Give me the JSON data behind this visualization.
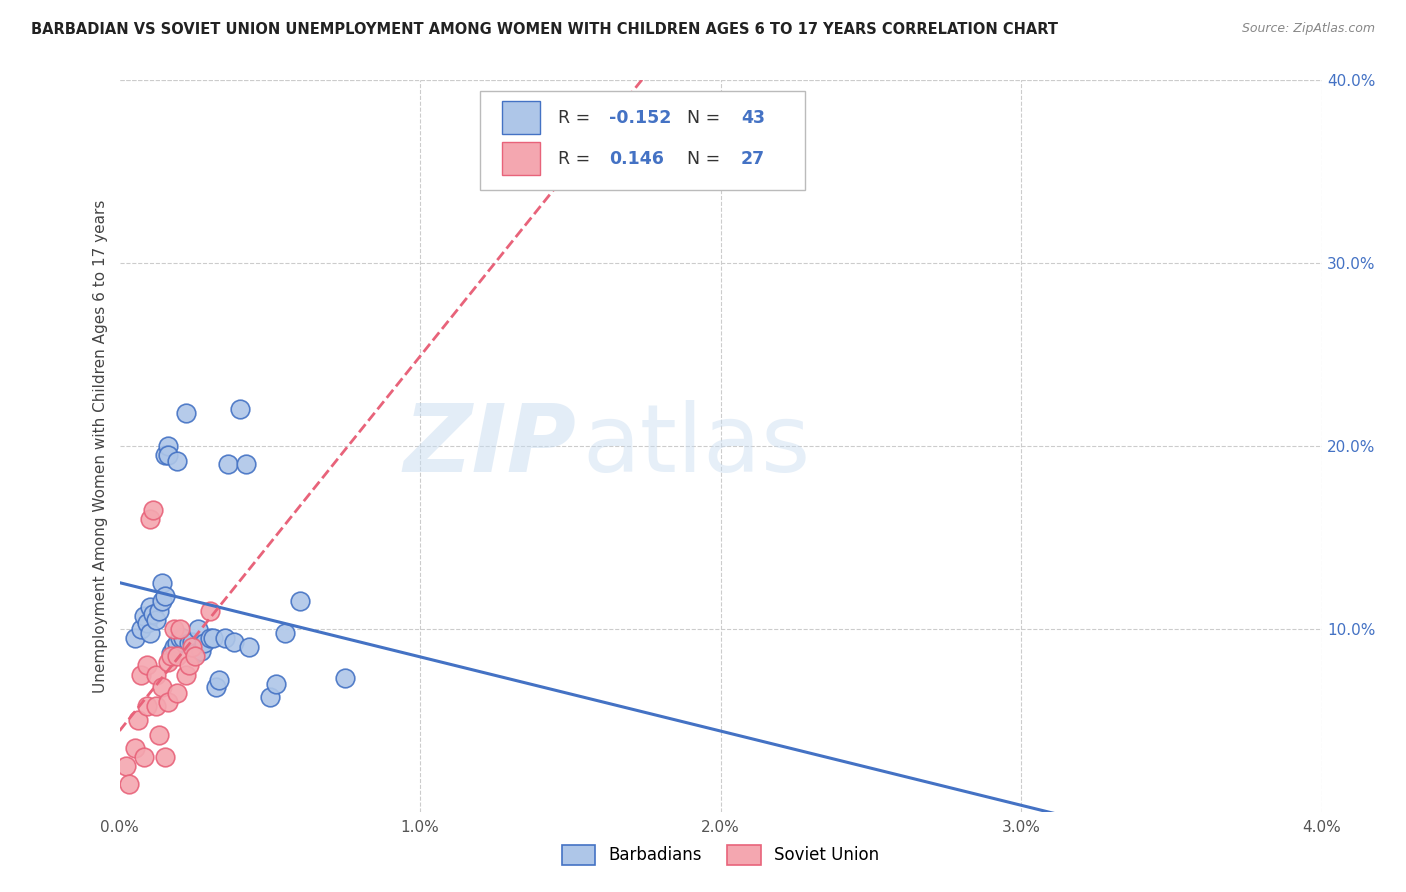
{
  "title": "BARBADIAN VS SOVIET UNION UNEMPLOYMENT AMONG WOMEN WITH CHILDREN AGES 6 TO 17 YEARS CORRELATION CHART",
  "source": "Source: ZipAtlas.com",
  "ylabel": "Unemployment Among Women with Children Ages 6 to 17 years",
  "barbadians_R": -0.152,
  "barbadians_N": 43,
  "soviet_R": 0.146,
  "soviet_N": 27,
  "x_min": 0.0,
  "x_max": 0.04,
  "y_min": 0.0,
  "y_max": 0.4,
  "x_ticks": [
    0.0,
    0.01,
    0.02,
    0.03,
    0.04
  ],
  "x_tick_labels": [
    "0.0%",
    "1.0%",
    "2.0%",
    "3.0%",
    "4.0%"
  ],
  "y_ticks_right": [
    0.1,
    0.2,
    0.3,
    0.4
  ],
  "y_tick_labels_right": [
    "10.0%",
    "20.0%",
    "30.0%",
    "40.0%"
  ],
  "barbadian_color": "#AEC6E8",
  "soviet_color": "#F4A7B0",
  "barbadian_line_color": "#4472C4",
  "soviet_line_color": "#E8637A",
  "background_color": "#FFFFFF",
  "grid_color": "#CCCCCC",
  "watermark_zip": "ZIP",
  "watermark_atlas": "atlas",
  "barbadians_x": [
    0.0005,
    0.0007,
    0.0008,
    0.0009,
    0.001,
    0.001,
    0.0011,
    0.0012,
    0.0013,
    0.0014,
    0.0014,
    0.0015,
    0.0015,
    0.0016,
    0.0016,
    0.0017,
    0.0018,
    0.0019,
    0.0019,
    0.002,
    0.0021,
    0.0022,
    0.0023,
    0.0024,
    0.0025,
    0.0026,
    0.0027,
    0.0028,
    0.003,
    0.0031,
    0.0032,
    0.0033,
    0.0035,
    0.0036,
    0.0038,
    0.004,
    0.0042,
    0.0043,
    0.005,
    0.0052,
    0.0055,
    0.006,
    0.0075
  ],
  "barbadians_y": [
    0.095,
    0.1,
    0.107,
    0.103,
    0.098,
    0.112,
    0.108,
    0.105,
    0.11,
    0.115,
    0.125,
    0.118,
    0.195,
    0.2,
    0.195,
    0.087,
    0.09,
    0.192,
    0.092,
    0.095,
    0.095,
    0.218,
    0.092,
    0.093,
    0.087,
    0.1,
    0.088,
    0.092,
    0.095,
    0.095,
    0.068,
    0.072,
    0.095,
    0.19,
    0.093,
    0.22,
    0.19,
    0.09,
    0.063,
    0.07,
    0.098,
    0.115,
    0.073
  ],
  "soviet_x": [
    0.0002,
    0.0003,
    0.0005,
    0.0006,
    0.0007,
    0.0008,
    0.0009,
    0.0009,
    0.001,
    0.0011,
    0.0012,
    0.0012,
    0.0013,
    0.0014,
    0.0015,
    0.0016,
    0.0016,
    0.0017,
    0.0018,
    0.0019,
    0.0019,
    0.002,
    0.0022,
    0.0023,
    0.0024,
    0.0025,
    0.003
  ],
  "soviet_y": [
    0.025,
    0.015,
    0.035,
    0.05,
    0.075,
    0.03,
    0.08,
    0.058,
    0.16,
    0.165,
    0.075,
    0.058,
    0.042,
    0.068,
    0.03,
    0.082,
    0.06,
    0.085,
    0.1,
    0.065,
    0.085,
    0.1,
    0.075,
    0.08,
    0.09,
    0.085,
    0.11
  ]
}
